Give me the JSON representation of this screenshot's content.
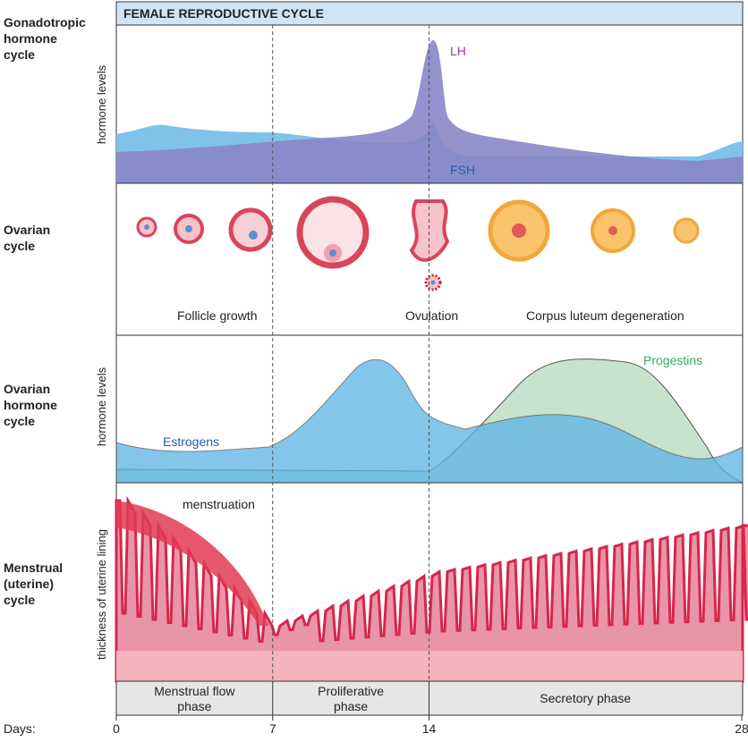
{
  "title": "FEMALE REPRODUCTIVE CYCLE",
  "sections": [
    {
      "label": [
        "Gonadotropic",
        "hormone",
        "cycle"
      ],
      "axis_label": "hormone levels"
    },
    {
      "label": [
        "Ovarian",
        "cycle"
      ]
    },
    {
      "label": [
        "Ovarian",
        "hormone",
        "cycle"
      ],
      "axis_label": "hormone levels"
    },
    {
      "label": [
        "Menstrual",
        "(uterine)",
        "cycle"
      ],
      "axis_label": "thickness of uterine lining"
    }
  ],
  "annotations": {
    "lh": "LH",
    "fsh": "FSH",
    "follicle_growth": "Follicle growth",
    "ovulation": "Ovulation",
    "corpus_luteum": "Corpus luteum degeneration",
    "estrogens": "Estrogens",
    "progestins": "Progestins",
    "menstruation": "menstruation"
  },
  "phases": [
    {
      "lines": [
        "Menstrual flow",
        "phase"
      ]
    },
    {
      "lines": [
        "Proliferative",
        "phase"
      ]
    },
    {
      "lines": [
        "Secretory phase"
      ]
    }
  ],
  "days_label": "Days:",
  "days": [
    0,
    7,
    14,
    28
  ]
}
